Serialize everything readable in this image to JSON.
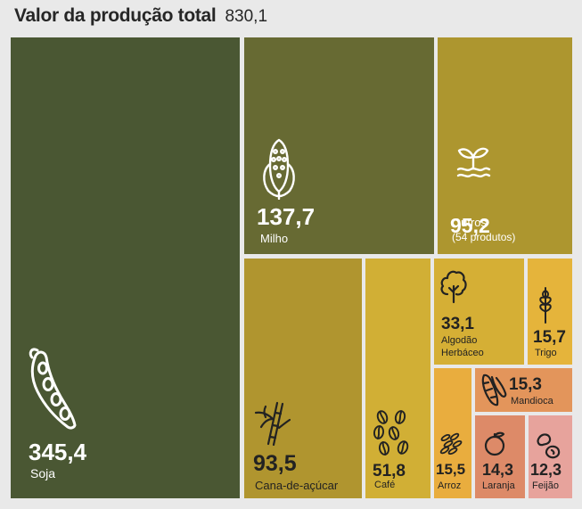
{
  "header": {
    "title": "Valor da produção total",
    "total": "830,1"
  },
  "colors": {
    "soja": "#4a5733",
    "milho": "#676a33",
    "outros": "#ad962f",
    "cana": "#b0952f",
    "cafe": "#d1af35",
    "algodao": "#d5af35",
    "trigo": "#e5b43b",
    "arroz": "#e9ad3e",
    "mandioca": "#e3955b",
    "laranja": "#dd8a68",
    "feijao": "#e7a39c",
    "background": "#e9e9e9"
  },
  "chart_data": {
    "type": "treemap",
    "title": "Valor da produção total",
    "total": 830.1,
    "items": [
      {
        "key": "soja",
        "label": "Soja",
        "value": 345.4,
        "value_text": "345,4",
        "icon": "soybean-pod-icon"
      },
      {
        "key": "milho",
        "label": "Milho",
        "value": 137.7,
        "value_text": "137,7",
        "icon": "corn-icon"
      },
      {
        "key": "outros",
        "label": "Outros",
        "sublabel": "(54 produtos)",
        "value": 95.2,
        "value_text": "95,2",
        "icon": "sprout-icon"
      },
      {
        "key": "cana",
        "label": "Cana-de-açúcar",
        "value": 93.5,
        "value_text": "93,5",
        "icon": "sugarcane-icon"
      },
      {
        "key": "cafe",
        "label": "Café",
        "value": 51.8,
        "value_text": "51,8",
        "icon": "coffee-beans-icon"
      },
      {
        "key": "algodao",
        "label": "Algodão",
        "sublabel": "Herbáceo",
        "value": 33.1,
        "value_text": "33,1",
        "icon": "cotton-icon"
      },
      {
        "key": "trigo",
        "label": "Trigo",
        "value": 15.7,
        "value_text": "15,7",
        "icon": "wheat-icon"
      },
      {
        "key": "arroz",
        "label": "Arroz",
        "value": 15.5,
        "value_text": "15,5",
        "icon": "rice-icon"
      },
      {
        "key": "mandioca",
        "label": "Mandioca",
        "value": 15.3,
        "value_text": "15,3",
        "icon": "cassava-icon"
      },
      {
        "key": "laranja",
        "label": "Laranja",
        "value": 14.3,
        "value_text": "14,3",
        "icon": "orange-icon"
      },
      {
        "key": "feijao",
        "label": "Feijão",
        "value": 12.3,
        "value_text": "12,3",
        "icon": "bean-icon"
      }
    ]
  }
}
